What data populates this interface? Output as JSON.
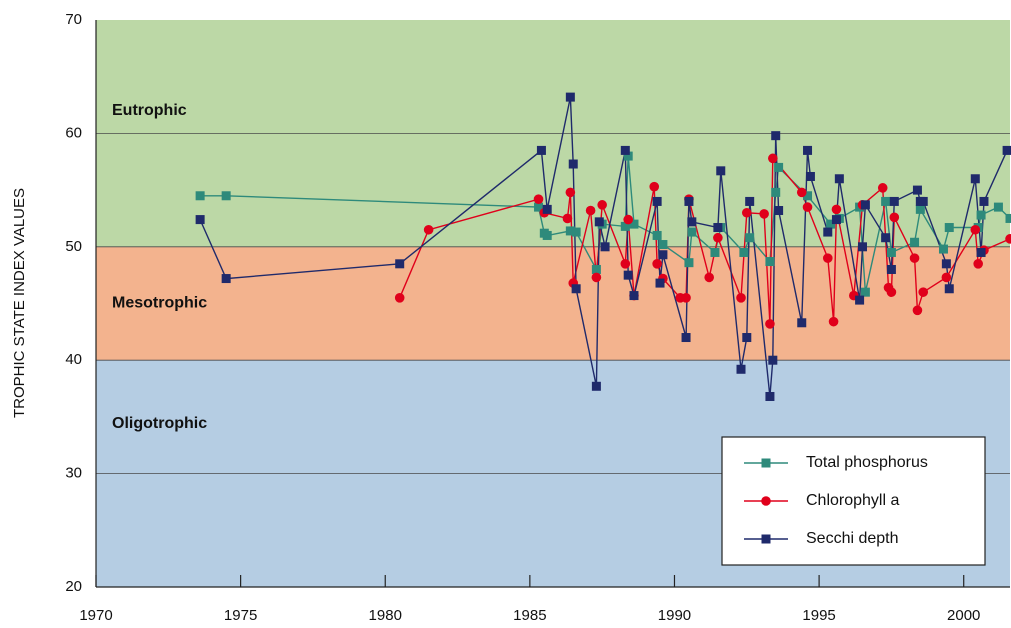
{
  "chart_data": {
    "type": "line",
    "y_label": "TROPHIC STATE INDEX VALUES",
    "xlim": [
      1970,
      2001.6
    ],
    "ylim": [
      20,
      70
    ],
    "xticks": [
      1970,
      1975,
      1980,
      1985,
      1990,
      1995,
      2000
    ],
    "yticks": [
      20,
      30,
      40,
      50,
      60,
      70
    ],
    "grid": true,
    "legend": "lower right",
    "bands": [
      {
        "label": "Eutrophic",
        "from": 50,
        "to": 70,
        "color": "#bcd8a6"
      },
      {
        "label": "Mesotrophic",
        "from": 40,
        "to": 50,
        "color": "#f3b38e"
      },
      {
        "label": "Oligotrophic",
        "from": 20,
        "to": 40,
        "color": "#b5cde3"
      }
    ],
    "series": [
      {
        "name": "Total phosphorus",
        "color": "#2e8a7b",
        "marker": "square",
        "x": [
          1973.6,
          1974.5,
          1985.3,
          1985.5,
          1985.6,
          1986.4,
          1986.6,
          1987.3,
          1987.5,
          1988.3,
          1988.4,
          1988.6,
          1989.4,
          1989.6,
          1990.5,
          1990.6,
          1991.4,
          1991.6,
          1992.4,
          1992.6,
          1993.3,
          1993.5,
          1993.6,
          1994.6,
          1995.4,
          1995.7,
          1996.4,
          1996.6,
          1997.3,
          1997.5,
          1998.3,
          1998.5,
          1999.3,
          1999.5,
          2000.5,
          2000.6,
          2001.2,
          2001.6
        ],
        "values": [
          54.5,
          54.5,
          53.5,
          51.2,
          51.0,
          51.4,
          51.3,
          48.0,
          52.0,
          51.8,
          58.0,
          52.0,
          51.0,
          50.2,
          48.6,
          51.3,
          49.5,
          51.7,
          49.5,
          50.8,
          48.7,
          54.8,
          57.0,
          54.5,
          52.0,
          52.5,
          53.5,
          46.0,
          54.0,
          49.5,
          50.4,
          53.3,
          49.8,
          51.7,
          51.7,
          52.8,
          53.5,
          52.5
        ]
      },
      {
        "name": "Chlorophyll a",
        "color": "#e0001b",
        "marker": "circle",
        "x": [
          1980.5,
          1981.5,
          1985.3,
          1985.5,
          1986.3,
          1986.4,
          1986.5,
          1987.1,
          1987.3,
          1987.5,
          1988.3,
          1988.4,
          1988.6,
          1989.3,
          1989.4,
          1989.6,
          1990.2,
          1990.4,
          1990.5,
          1991.2,
          1991.5,
          1992.3,
          1992.5,
          1993.1,
          1993.3,
          1993.4,
          1994.4,
          1994.6,
          1995.3,
          1995.5,
          1995.6,
          1996.2,
          1996.5,
          1997.2,
          1997.4,
          1997.5,
          1997.6,
          1998.3,
          1998.4,
          1998.6,
          1999.4,
          2000.4,
          2000.5,
          2000.7,
          2001.6
        ],
        "values": [
          45.5,
          51.5,
          54.2,
          53.0,
          52.5,
          54.8,
          46.8,
          53.2,
          47.3,
          53.7,
          48.5,
          52.4,
          45.7,
          55.3,
          48.5,
          47.2,
          45.5,
          45.5,
          54.2,
          47.3,
          50.8,
          45.5,
          53.0,
          52.9,
          43.2,
          57.8,
          54.8,
          53.5,
          49.0,
          43.4,
          53.3,
          45.7,
          53.7,
          55.2,
          46.4,
          46.0,
          52.6,
          49.0,
          44.4,
          46.0,
          47.3,
          51.5,
          48.5,
          49.7,
          50.7
        ]
      },
      {
        "name": "Secchi depth",
        "color": "#1f2a6b",
        "marker": "square",
        "x": [
          1973.6,
          1974.5,
          1980.5,
          1985.4,
          1985.6,
          1986.4,
          1986.5,
          1986.6,
          1987.3,
          1987.4,
          1987.6,
          1988.3,
          1988.4,
          1988.6,
          1989.4,
          1989.5,
          1989.6,
          1990.4,
          1990.5,
          1990.6,
          1991.5,
          1991.6,
          1992.3,
          1992.5,
          1992.6,
          1993.3,
          1993.4,
          1993.5,
          1993.6,
          1994.4,
          1994.6,
          1994.7,
          1995.3,
          1995.6,
          1995.7,
          1996.4,
          1996.5,
          1996.6,
          1997.3,
          1997.5,
          1997.6,
          1998.4,
          1998.5,
          1998.6,
          1999.4,
          1999.5,
          2000.4,
          2000.6,
          2000.7,
          2001.5
        ],
        "values": [
          52.4,
          47.2,
          48.5,
          58.5,
          53.3,
          63.2,
          57.3,
          46.3,
          37.7,
          52.2,
          50.0,
          58.5,
          47.5,
          45.7,
          54.0,
          46.8,
          49.3,
          42.0,
          54.0,
          52.2,
          51.7,
          56.7,
          39.2,
          42.0,
          54.0,
          36.8,
          40.0,
          59.8,
          53.2,
          43.3,
          58.5,
          56.2,
          51.3,
          52.4,
          56.0,
          45.3,
          50.0,
          53.7,
          50.8,
          48.0,
          54.0,
          55.0,
          54.0,
          54.0,
          48.5,
          46.3,
          56.0,
          49.5,
          54.0,
          58.5
        ]
      }
    ]
  }
}
